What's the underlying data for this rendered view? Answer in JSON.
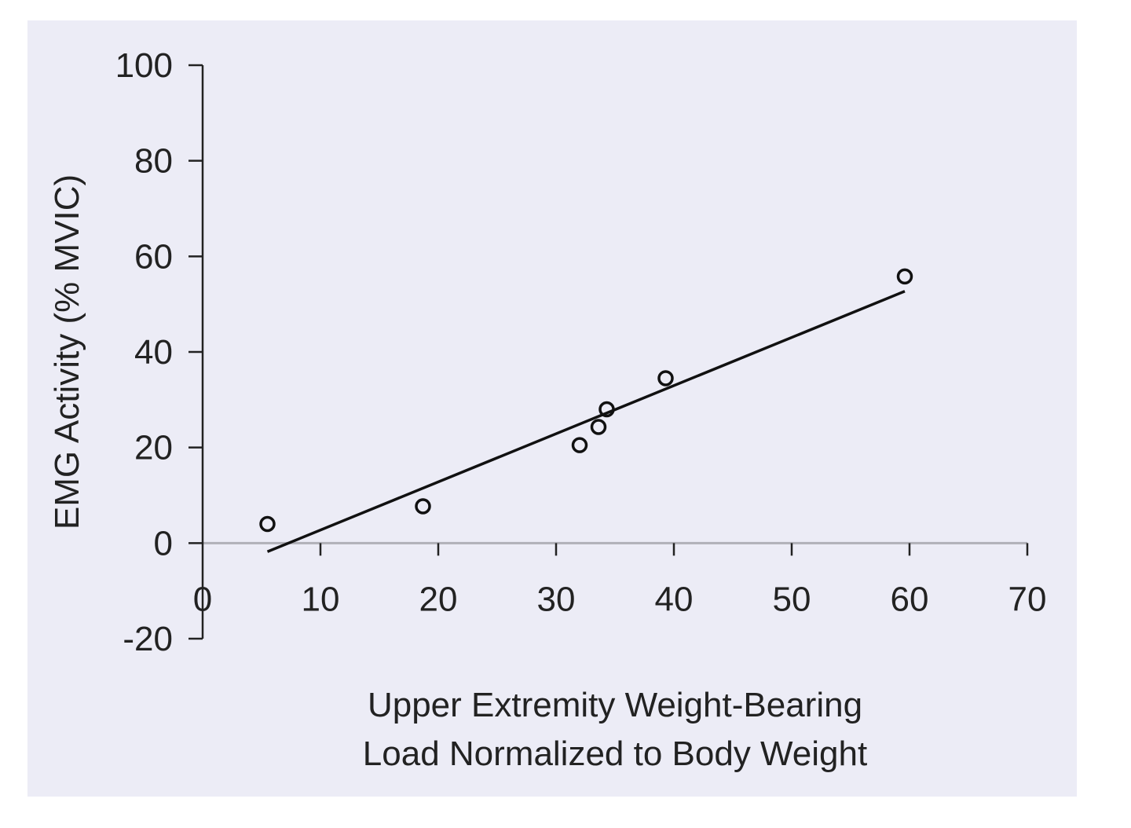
{
  "chart_data": {
    "type": "scatter",
    "background_color": "#ececf6",
    "axis_color": "#222222",
    "zero_line_color": "#b0b0b8",
    "xlabel": [
      "Upper Extremity Weight-Bearing",
      "Load Normalized to Body Weight"
    ],
    "ylabel": "EMG Activity (% MVIC)",
    "xlim": [
      0,
      70
    ],
    "ylim": [
      -20,
      100
    ],
    "x_ticks": [
      0,
      10,
      20,
      30,
      40,
      50,
      60,
      70
    ],
    "x_tick_labels": [
      "0",
      "10",
      "20",
      "30",
      "40",
      "50",
      "60",
      "70"
    ],
    "y_ticks": [
      -20,
      0,
      20,
      40,
      60,
      80,
      100
    ],
    "y_tick_labels": [
      "-20",
      "0",
      "20",
      "40",
      "60",
      "80",
      "100"
    ],
    "grid": false,
    "series": [
      {
        "marker": "open-circle",
        "points": [
          {
            "x": 5.5,
            "y": 4
          },
          {
            "x": 18.7,
            "y": 7.7
          },
          {
            "x": 32,
            "y": 20.5
          },
          {
            "x": 33.6,
            "y": 24.3
          },
          {
            "x": 34.3,
            "y": 28
          },
          {
            "x": 39.3,
            "y": 34.5
          },
          {
            "x": 59.6,
            "y": 55.8
          }
        ]
      }
    ],
    "trendline": {
      "x": [
        5.5,
        59.6
      ],
      "y": [
        -1.8,
        52.7
      ]
    }
  }
}
